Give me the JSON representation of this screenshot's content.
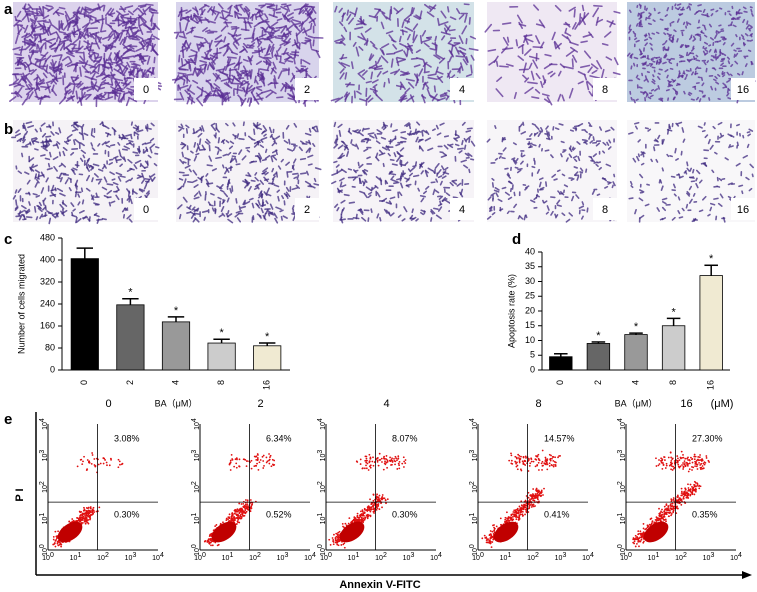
{
  "panel_labels": [
    "a",
    "b",
    "c",
    "d",
    "e"
  ],
  "panel_a": {
    "doses": [
      "0",
      "2",
      "4",
      "8",
      "16"
    ]
  },
  "panel_b": {
    "doses": [
      "0",
      "2",
      "4",
      "8",
      "16"
    ]
  },
  "chart_data": [
    {
      "type": "bar",
      "y_label": "Number of cells migrated",
      "x_label": "BA（μM）",
      "categories": [
        "0",
        "2",
        "4",
        "8",
        "16"
      ],
      "values": [
        405,
        237,
        175,
        98,
        88
      ],
      "errors": [
        38,
        22,
        18,
        14,
        10
      ],
      "colors": [
        "#000000",
        "#666666",
        "#999999",
        "#cccccc",
        "#f0ead2"
      ],
      "significance": [
        null,
        "*",
        "*",
        "*",
        "*"
      ],
      "ylim": [
        0,
        480
      ],
      "yticks": [
        0,
        80,
        160,
        240,
        320,
        400,
        480
      ]
    },
    {
      "type": "bar",
      "y_label": "Apoptosis rate (%)",
      "x_label": "BA（μM）",
      "categories": [
        "0",
        "2",
        "4",
        "8",
        "16"
      ],
      "values": [
        4.5,
        9,
        12,
        15,
        32
      ],
      "errors": [
        1,
        0.5,
        0.5,
        2.5,
        3.5
      ],
      "colors": [
        "#000000",
        "#666666",
        "#999999",
        "#cccccc",
        "#f0ead2"
      ],
      "significance": [
        null,
        "*",
        "*",
        "*",
        "*"
      ],
      "ylim": [
        0,
        40
      ],
      "yticks": [
        0,
        5,
        10,
        15,
        20,
        25,
        30,
        35,
        40
      ]
    }
  ],
  "panel_e": {
    "doses": [
      "0",
      "2",
      "4",
      "8",
      "16"
    ],
    "unit": "(μM)",
    "upper_right": [
      "3.08%",
      "6.34%",
      "8.07%",
      "14.57%",
      "27.30%"
    ],
    "lower_right": [
      "0.30%",
      "0.52%",
      "0.30%",
      "0.41%",
      "0.35%"
    ],
    "y_label": "P I",
    "x_label": "Annexin V-FITC",
    "tick_base": "10",
    "tick_exponents": [
      "0",
      "1",
      "2",
      "3",
      "4"
    ]
  }
}
